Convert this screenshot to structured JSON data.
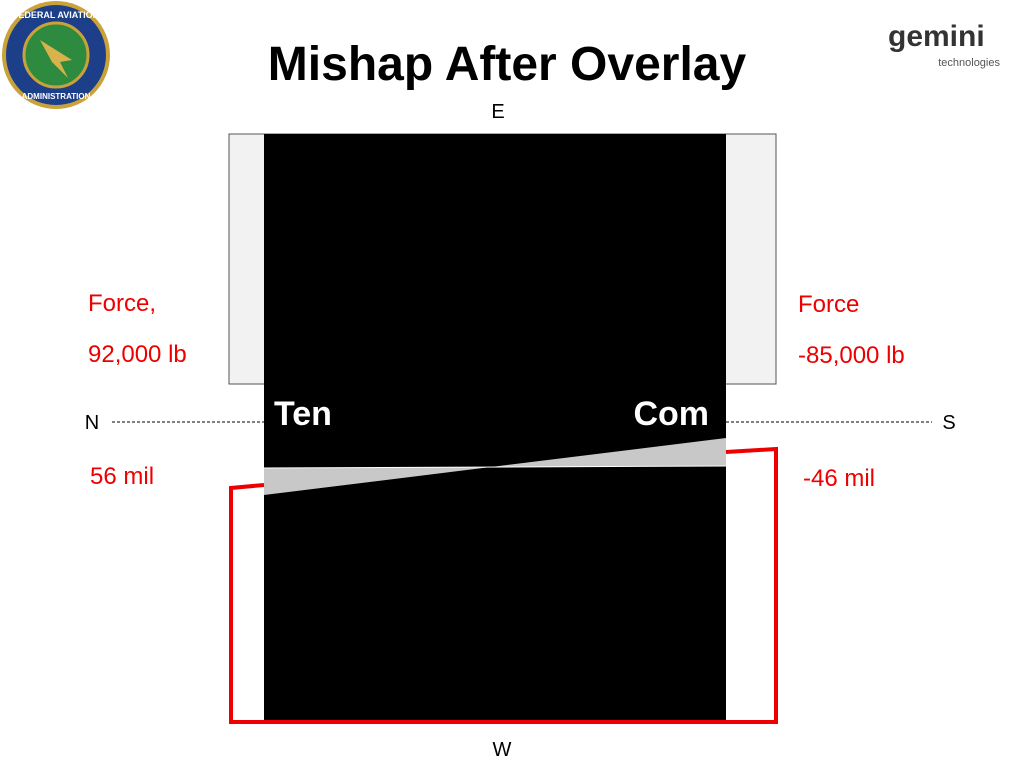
{
  "title": "Mishap After Overlay",
  "logo_left": {
    "top": "FEDERAL AVIATION",
    "bottom": "ADMINISTRATION"
  },
  "logo_right": {
    "name": "gemini",
    "sub": "technologies"
  },
  "directions": {
    "east": "E",
    "west": "W",
    "north": "N",
    "south": "S"
  },
  "left": {
    "force_label": "Force,",
    "force_value": "92,000 lb",
    "deflection": "56 mil"
  },
  "right": {
    "force_label": "Force",
    "force_value": "-85,000 lb",
    "deflection": "-46 mil"
  },
  "zones": {
    "tension": "Ten",
    "compression": "Com"
  }
}
